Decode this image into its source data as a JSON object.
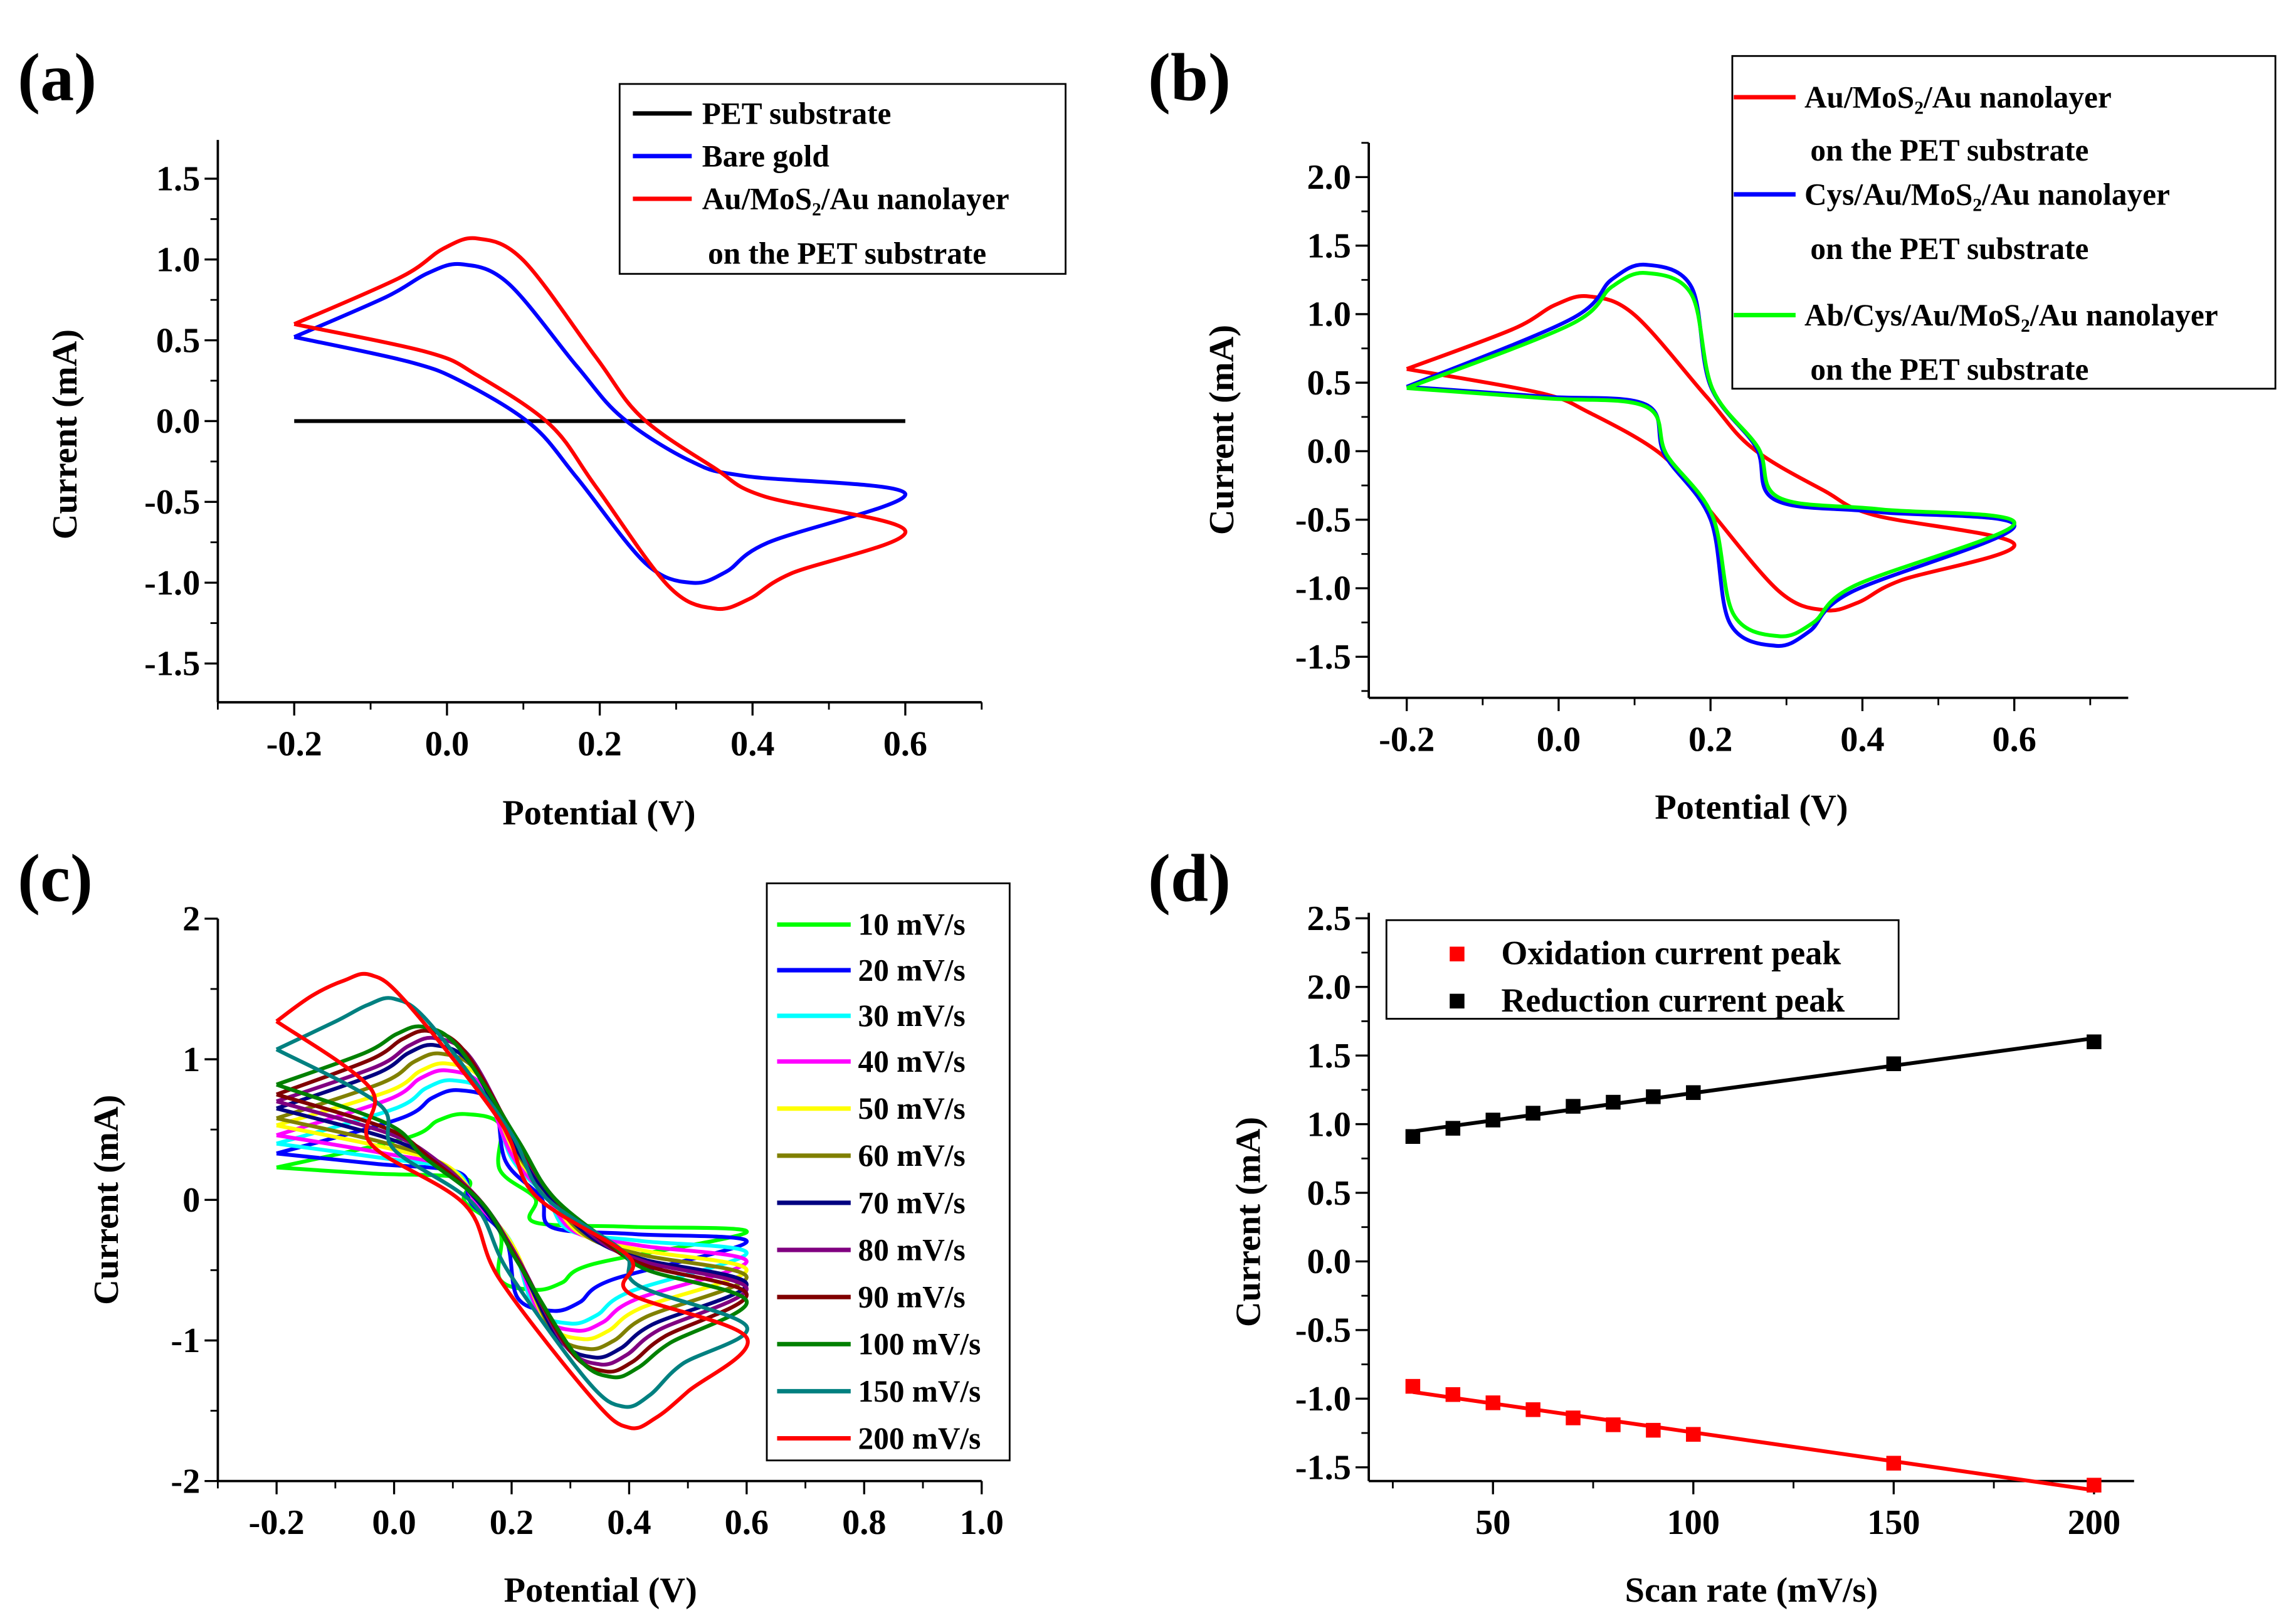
{
  "chart_data": [
    {
      "panel": "(a)",
      "type": "line",
      "xlabel": "Potential (V)",
      "ylabel": "Current (mA)",
      "xlim": [
        -0.3,
        0.7
      ],
      "ylim": [
        -1.74,
        1.74
      ],
      "xticks": [
        -0.2,
        0.0,
        0.2,
        0.4,
        0.6
      ],
      "xtick_labels": [
        "-0.2",
        "0.0",
        "0.2",
        "0.4",
        "0.6"
      ],
      "xminor": 0.1,
      "yticks": [
        -1.5,
        -1.0,
        -0.5,
        0.0,
        0.5,
        1.0,
        1.5
      ],
      "ytick_labels": [
        "-1.5",
        "-1.0",
        "-0.5",
        "0.0",
        "0.5",
        "1.0",
        "1.5"
      ],
      "yminor": 0.25,
      "legend_position": "top-right",
      "series": [
        {
          "name": "PET substrate",
          "legend_lines": [
            "PET substrate"
          ],
          "color": "#000000",
          "kind": "flat",
          "value": 0.0,
          "range": [
            -0.2,
            0.6
          ]
        },
        {
          "name": "Bare gold",
          "legend_lines": [
            "Bare gold"
          ],
          "color": "#0000ff",
          "kind": "cv",
          "ox_peak_E": 0.02,
          "ox_peak_I": 0.97,
          "red_peak_E": 0.32,
          "red_peak_I": -1.0,
          "start_I": 0.52,
          "end_I_up": -0.45,
          "end_I_down": -0.45
        },
        {
          "name": "Au/MoS₂/Au nanolayer on the PET substrate",
          "legend_lines": [
            "Au/MoS₂/Au nanolayer",
            "on the PET substrate"
          ],
          "color": "#ff0000",
          "kind": "cv",
          "ox_peak_E": 0.04,
          "ox_peak_I": 1.13,
          "red_peak_E": 0.35,
          "red_peak_I": -1.16,
          "start_I": 0.6,
          "end_I_up": -0.68,
          "end_I_down": -0.68
        }
      ]
    },
    {
      "panel": "(b)",
      "type": "line",
      "xlabel": "Potential (V)",
      "ylabel": "Current (mA)",
      "xlim": [
        -0.25,
        0.75
      ],
      "ylim": [
        -1.8,
        2.25
      ],
      "xticks": [
        -0.2,
        0.0,
        0.2,
        0.4,
        0.6
      ],
      "xtick_labels": [
        "-0.2",
        "0.0",
        "0.2",
        "0.4",
        "0.6"
      ],
      "xminor": 0.1,
      "yticks": [
        -1.5,
        -1.0,
        -0.5,
        0.0,
        0.5,
        1.0,
        1.5,
        2.0
      ],
      "ytick_labels": [
        "-1.5",
        "-1.0",
        "-0.5",
        "0.0",
        "0.5",
        "1.0",
        "1.5",
        "2.0"
      ],
      "yminor": 0.25,
      "legend_position": "top-right",
      "series": [
        {
          "name": "Au/MoS₂/Au nanolayer on the PET substrate",
          "legend_lines": [
            "Au/MoS₂/Au nanolayer",
            "on the PET substrate"
          ],
          "color": "#ff0000",
          "kind": "cv",
          "ox_peak_E": 0.04,
          "ox_peak_I": 1.13,
          "red_peak_E": 0.35,
          "red_peak_I": -1.16,
          "start_I": 0.6,
          "end_I_up": -0.68,
          "end_I_down": -0.68
        },
        {
          "name": "Cys/Au/MoS₂/Au nanolayer on the PET substrate",
          "legend_lines": [
            "Cys/Au/MoS₂/Au nanolayer",
            "on the PET substrate"
          ],
          "color": "#0000ff",
          "kind": "cv",
          "ox_peak_E": 0.115,
          "ox_peak_I": 1.36,
          "red_peak_E": 0.285,
          "red_peak_I": -1.42,
          "start_I": 0.47,
          "end_I_up": -0.55,
          "end_I_down": -0.55
        },
        {
          "name": "Ab/Cys/Au/MoS₂/Au nanolayer on the PET substrate",
          "legend_lines": [
            "Ab/Cys/Au/MoS₂/Au nanolayer",
            "on the PET substrate"
          ],
          "color": "#00ff00",
          "kind": "cv",
          "ox_peak_E": 0.115,
          "ox_peak_I": 1.3,
          "red_peak_E": 0.29,
          "red_peak_I": -1.35,
          "start_I": 0.46,
          "end_I_up": -0.53,
          "end_I_down": -0.53
        }
      ]
    },
    {
      "panel": "(c)",
      "type": "line",
      "xlabel": "Potential (V)",
      "ylabel": "Current (mA)",
      "xlim": [
        -0.3,
        1.0
      ],
      "ylim": [
        -2,
        2
      ],
      "xticks": [
        -0.2,
        0.0,
        0.2,
        0.4,
        0.6,
        0.8,
        1.0
      ],
      "xtick_labels": [
        "-0.2",
        "0.0",
        "0.2",
        "0.4",
        "0.6",
        "0.8",
        "1.0"
      ],
      "xminor": 0.1,
      "yticks": [
        -2,
        -1,
        0,
        1,
        2
      ],
      "ytick_labels": [
        "-2",
        "-1",
        "0",
        "1",
        "2"
      ],
      "yminor": 0.5,
      "legend_position": "right",
      "series": [
        {
          "name": "10 mV/s",
          "legend_lines": [
            "10 mV/s"
          ],
          "color": "#00ff00",
          "kind": "cv",
          "ox_peak_E": 0.12,
          "ox_peak_I": 0.61,
          "red_peak_E": 0.24,
          "red_peak_I": -0.64,
          "start_I": 0.23,
          "end_I_up": -0.23,
          "end_I_down": -0.23
        },
        {
          "name": "20 mV/s",
          "legend_lines": [
            "20 mV/s"
          ],
          "color": "#0000ff",
          "kind": "cv",
          "ox_peak_E": 0.11,
          "ox_peak_I": 0.78,
          "red_peak_E": 0.27,
          "red_peak_I": -0.79,
          "start_I": 0.33,
          "end_I_up": -0.3,
          "end_I_down": -0.3
        },
        {
          "name": "30 mV/s",
          "legend_lines": [
            "30 mV/s"
          ],
          "color": "#00ffff",
          "kind": "cv",
          "ox_peak_E": 0.1,
          "ox_peak_I": 0.85,
          "red_peak_E": 0.3,
          "red_peak_I": -0.88,
          "start_I": 0.4,
          "end_I_up": -0.38,
          "end_I_down": -0.38
        },
        {
          "name": "40 mV/s",
          "legend_lines": [
            "40 mV/s"
          ],
          "color": "#ff00ff",
          "kind": "cv",
          "ox_peak_E": 0.09,
          "ox_peak_I": 0.92,
          "red_peak_E": 0.31,
          "red_peak_I": -0.93,
          "start_I": 0.46,
          "end_I_up": -0.44,
          "end_I_down": -0.44
        },
        {
          "name": "50 mV/s",
          "legend_lines": [
            "50 mV/s"
          ],
          "color": "#ffff00",
          "kind": "cv",
          "ox_peak_E": 0.09,
          "ox_peak_I": 0.97,
          "red_peak_E": 0.32,
          "red_peak_I": -0.99,
          "start_I": 0.53,
          "end_I_up": -0.5,
          "end_I_down": -0.5
        },
        {
          "name": "60 mV/s",
          "legend_lines": [
            "60 mV/s"
          ],
          "color": "#808000",
          "kind": "cv",
          "ox_peak_E": 0.08,
          "ox_peak_I": 1.04,
          "red_peak_E": 0.33,
          "red_peak_I": -1.06,
          "start_I": 0.58,
          "end_I_up": -0.55,
          "end_I_down": -0.55
        },
        {
          "name": "70 mV/s",
          "legend_lines": [
            "70 mV/s"
          ],
          "color": "#000080",
          "kind": "cv",
          "ox_peak_E": 0.07,
          "ox_peak_I": 1.1,
          "red_peak_E": 0.34,
          "red_peak_I": -1.12,
          "start_I": 0.65,
          "end_I_up": -0.6,
          "end_I_down": -0.6
        },
        {
          "name": "80 mV/s",
          "legend_lines": [
            "80 mV/s"
          ],
          "color": "#800080",
          "kind": "cv",
          "ox_peak_E": 0.07,
          "ox_peak_I": 1.15,
          "red_peak_E": 0.35,
          "red_peak_I": -1.17,
          "start_I": 0.7,
          "end_I_up": -0.63,
          "end_I_down": -0.63
        },
        {
          "name": "90 mV/s",
          "legend_lines": [
            "90 mV/s"
          ],
          "color": "#800000",
          "kind": "cv",
          "ox_peak_E": 0.06,
          "ox_peak_I": 1.2,
          "red_peak_E": 0.36,
          "red_peak_I": -1.22,
          "start_I": 0.75,
          "end_I_up": -0.67,
          "end_I_down": -0.67
        },
        {
          "name": "100 mV/s",
          "legend_lines": [
            "100 mV/s"
          ],
          "color": "#008000",
          "kind": "cv",
          "ox_peak_E": 0.05,
          "ox_peak_I": 1.23,
          "red_peak_E": 0.37,
          "red_peak_I": -1.26,
          "start_I": 0.82,
          "end_I_up": -0.72,
          "end_I_down": -0.72
        },
        {
          "name": "150 mV/s",
          "legend_lines": [
            "150 mV/s"
          ],
          "color": "#008080",
          "kind": "cv",
          "ox_peak_E": 0.0,
          "ox_peak_I": 1.43,
          "red_peak_E": 0.39,
          "red_peak_I": -1.47,
          "start_I": 1.07,
          "end_I_up": -0.9,
          "end_I_down": -0.8
        },
        {
          "name": "200 mV/s",
          "legend_lines": [
            "200 mV/s"
          ],
          "color": "#ff0000",
          "kind": "cv",
          "ox_peak_E": -0.04,
          "ox_peak_I": 1.6,
          "red_peak_E": 0.4,
          "red_peak_I": -1.62,
          "start_I": 1.27,
          "end_I_up": -0.98,
          "end_I_down": -1.05
        }
      ]
    },
    {
      "panel": "(d)",
      "type": "scatter",
      "xlabel": "Scan rate (mV/s)",
      "ylabel": "Current (mA)",
      "xlim": [
        19,
        210
      ],
      "ylim": [
        -1.6,
        2.54
      ],
      "xticks": [
        50,
        100,
        150,
        200
      ],
      "xtick_labels": [
        "50",
        "100",
        "150",
        "200"
      ],
      "xminor": 25,
      "yticks": [
        -1.5,
        -1.0,
        -0.5,
        0.0,
        0.5,
        1.0,
        1.5,
        2.0,
        2.5
      ],
      "ytick_labels": [
        "-1.5",
        "-1.0",
        "-0.5",
        "0.0",
        "0.5",
        "1.0",
        "1.5",
        "2.0",
        "2.5"
      ],
      "yminor": 0.25,
      "legend_position": "top-left",
      "x": [
        30,
        40,
        50,
        60,
        70,
        80,
        90,
        100,
        150,
        200
      ],
      "series": [
        {
          "name": "Oxidation current peak",
          "legend_lines": [
            "Oxidation current peak"
          ],
          "color": "#ff0000",
          "fit": "linear",
          "values": [
            -0.91,
            -0.97,
            -1.03,
            -1.08,
            -1.14,
            -1.19,
            -1.23,
            -1.26,
            -1.47,
            -1.63
          ]
        },
        {
          "name": "Reduction current peak",
          "legend_lines": [
            "Reduction current peak"
          ],
          "color": "#000000",
          "fit": "linear",
          "values": [
            0.91,
            0.97,
            1.03,
            1.08,
            1.13,
            1.16,
            1.2,
            1.23,
            1.44,
            1.6
          ]
        }
      ]
    }
  ]
}
